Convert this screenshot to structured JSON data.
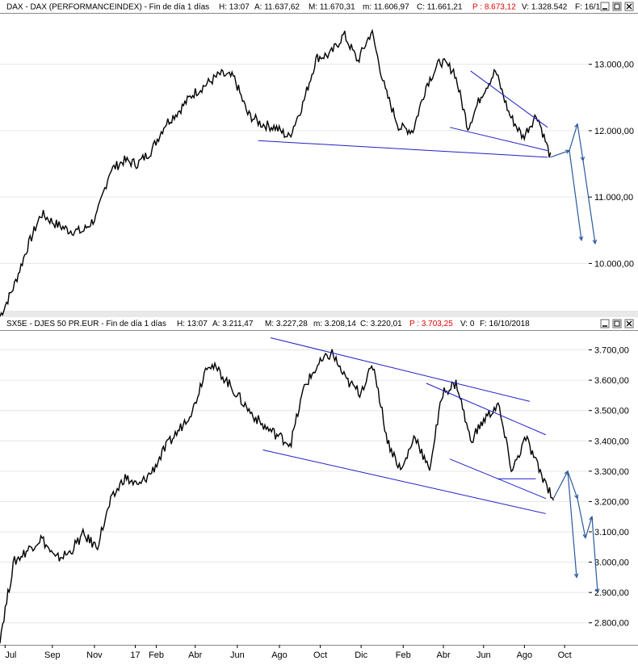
{
  "panels": [
    {
      "header": {
        "name": "DAX - DAX (PERFORMANCEINDEX) - Fin de día 1 días",
        "h": "H: 13:07",
        "a": "A: 11.637,62",
        "m": "M: 11.670,31",
        "n": "m: 11.606,97",
        "c": "C: 11.661,21",
        "p": "P : 8.673,12",
        "v": "V: 1.328.542",
        "f": "F: 16/1"
      }
    },
    {
      "header": {
        "name": "SX5E - DJES 50 PR.EUR - Fin de día 1 días",
        "h": "H: 13:07",
        "a": "A: 3.211,47",
        "m": "M: 3.227,28",
        "n": "m: 3.208,14",
        "c": "C: 3.220,01",
        "p": "P : 3.703,25",
        "v": "V: 0",
        "f": "F: 16/10/2018"
      }
    }
  ],
  "window_buttons": [
    "minimize-icon",
    "restore-icon",
    "close-icon"
  ],
  "colors": {
    "price": "#000000",
    "trendline": "#1f1fc8",
    "arrow": "#2a5a9c",
    "p_value": "#e00000",
    "header_bg": "#ffffff",
    "grid": "#e6e6e6"
  },
  "chart_data": [
    {
      "type": "line",
      "title": "DAX - DAX (PERFORMANCEINDEX)",
      "ylim": [
        9300,
        13750
      ],
      "y_ticks": [
        "10.000,00",
        "11.000,00",
        "12.000,00",
        "13.000,00"
      ],
      "y_tick_values": [
        10000,
        11000,
        12000,
        13000
      ],
      "series": [
        {
          "name": "DAX",
          "values": [
            9200,
            9650,
            10250,
            10750,
            10600,
            10500,
            10480,
            10700,
            11400,
            11550,
            11500,
            11700,
            12100,
            12300,
            12550,
            12700,
            12850,
            12800,
            12250,
            12100,
            12050,
            11900,
            12400,
            13100,
            13150,
            13450,
            13050,
            13500,
            12600,
            12050,
            12000,
            12700,
            13050,
            12900,
            12050,
            12550,
            12900,
            12250,
            11900,
            12250,
            11600
          ]
        }
      ],
      "trendlines": [
        {
          "from": [
            0.436,
            11850
          ],
          "to": [
            0.925,
            11600
          ]
        },
        {
          "from": [
            0.76,
            12050
          ],
          "to": [
            0.925,
            11700
          ]
        },
        {
          "from": [
            0.795,
            12900
          ],
          "to": [
            0.925,
            12050
          ]
        }
      ]
    },
    {
      "type": "line",
      "title": "SX5E - DJES 50 PR.EUR",
      "ylim": [
        2730,
        3760
      ],
      "y_ticks": [
        "2.800,00",
        "2.900,00",
        "3.000,00",
        "3.100,00",
        "3.200,00",
        "3.300,00",
        "3.400,00",
        "3.500,00",
        "3.600,00",
        "3.700,00"
      ],
      "y_tick_values": [
        2800,
        2900,
        3000,
        3100,
        3200,
        3300,
        3400,
        3500,
        3600,
        3700
      ],
      "series": [
        {
          "name": "SX5E",
          "values": [
            2750,
            3000,
            3040,
            3080,
            3010,
            3030,
            3090,
            3050,
            3200,
            3280,
            3250,
            3300,
            3380,
            3440,
            3510,
            3660,
            3620,
            3560,
            3500,
            3450,
            3420,
            3390,
            3580,
            3650,
            3690,
            3600,
            3560,
            3650,
            3400,
            3300,
            3420,
            3300,
            3560,
            3590,
            3400,
            3470,
            3520,
            3300,
            3410,
            3300,
            3210
          ]
        }
      ],
      "trendlines": [
        {
          "from": [
            0.444,
            3370
          ],
          "to": [
            0.922,
            3160
          ]
        },
        {
          "from": [
            0.457,
            3740
          ],
          "to": [
            0.895,
            3530
          ]
        },
        {
          "from": [
            0.72,
            3590
          ],
          "to": [
            0.922,
            3420
          ]
        },
        {
          "from": [
            0.76,
            3340
          ],
          "to": [
            0.922,
            3210
          ]
        },
        {
          "from": [
            0.84,
            3275
          ],
          "to": [
            0.905,
            3275
          ]
        }
      ]
    }
  ],
  "x_axis": {
    "labels": [
      "Jul",
      "Sep",
      "Nov",
      "17",
      "Feb",
      "Abr",
      "Jun",
      "Ago",
      "Oct",
      "Dic",
      "Feb",
      "Abr",
      "Jun",
      "Ago",
      "Oct"
    ],
    "positions": [
      0.008,
      0.082,
      0.148,
      0.212,
      0.245,
      0.306,
      0.372,
      0.438,
      0.502,
      0.566,
      0.632,
      0.695,
      0.758,
      0.822,
      0.885
    ]
  }
}
